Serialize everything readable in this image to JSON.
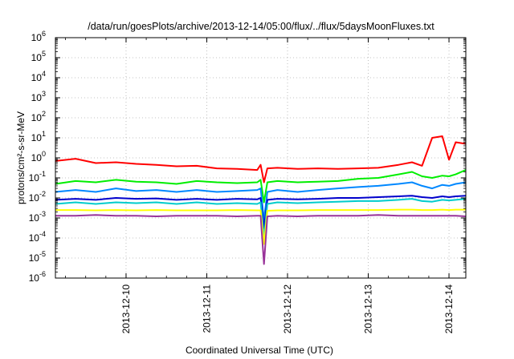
{
  "chart_data": {
    "type": "line",
    "title": "/data/run/goesPlots/archive/2013-12-14/05:00/flux/../flux/5daysMoonFluxes.txt",
    "xlabel": "Coordinated Universal Time (UTC)",
    "ylabel": "protons/cm²-s-sr-MeV",
    "yscale": "log",
    "ylim": [
      1e-06,
      1000000.0
    ],
    "xlim": [
      "2013-12-09T03:00",
      "2013-12-14T05:00"
    ],
    "grid": true,
    "legend": "none",
    "x_ticks": [
      "2013-12-10",
      "2013-12-11",
      "2013-12-12",
      "2013-12-13",
      "2013-12-14"
    ],
    "y_ticks": [
      {
        "base": "10",
        "exp": "-6"
      },
      {
        "base": "10",
        "exp": "-5"
      },
      {
        "base": "10",
        "exp": "-4"
      },
      {
        "base": "10",
        "exp": "-3"
      },
      {
        "base": "10",
        "exp": "-2"
      },
      {
        "base": "10",
        "exp": "-1"
      },
      {
        "base": "10",
        "exp": "0"
      },
      {
        "base": "10",
        "exp": "1"
      },
      {
        "base": "10",
        "exp": "2"
      },
      {
        "base": "10",
        "exp": "3"
      },
      {
        "base": "10",
        "exp": "4"
      },
      {
        "base": "10",
        "exp": "5"
      },
      {
        "base": "10",
        "exp": "6"
      }
    ],
    "x": [
      "2013-12-09T03:00",
      "2013-12-09T09:00",
      "2013-12-09T15:00",
      "2013-12-09T21:00",
      "2013-12-10T03:00",
      "2013-12-10T09:00",
      "2013-12-10T15:00",
      "2013-12-10T21:00",
      "2013-12-11T03:00",
      "2013-12-11T09:00",
      "2013-12-11T15:00",
      "2013-12-11T16:00",
      "2013-12-11T17:00",
      "2013-12-11T18:00",
      "2013-12-11T21:00",
      "2013-12-12T03:00",
      "2013-12-12T09:00",
      "2013-12-12T15:00",
      "2013-12-12T21:00",
      "2013-12-13T03:00",
      "2013-12-13T09:00",
      "2013-12-13T13:00",
      "2013-12-13T16:00",
      "2013-12-13T19:00",
      "2013-12-13T22:00",
      "2013-12-14T00:00",
      "2013-12-14T02:00",
      "2013-12-14T05:00"
    ],
    "series": [
      {
        "color": "#ff0000",
        "values": [
          0.7,
          0.9,
          0.55,
          0.6,
          0.5,
          0.45,
          0.38,
          0.4,
          0.3,
          0.28,
          0.25,
          0.45,
          0.06,
          0.3,
          0.32,
          0.28,
          0.3,
          0.28,
          0.3,
          0.32,
          0.45,
          0.6,
          0.4,
          10,
          12,
          0.8,
          6,
          5
        ]
      },
      {
        "color": "#00ee00",
        "values": [
          0.05,
          0.07,
          0.06,
          0.08,
          0.065,
          0.06,
          0.05,
          0.07,
          0.06,
          0.055,
          0.06,
          0.08,
          0.006,
          0.06,
          0.07,
          0.06,
          0.065,
          0.07,
          0.09,
          0.1,
          0.15,
          0.2,
          0.12,
          0.1,
          0.13,
          0.12,
          0.15,
          0.25
        ]
      },
      {
        "color": "#0088ff",
        "values": [
          0.02,
          0.025,
          0.02,
          0.03,
          0.022,
          0.025,
          0.02,
          0.025,
          0.02,
          0.022,
          0.025,
          0.03,
          0.0008,
          0.02,
          0.025,
          0.02,
          0.025,
          0.03,
          0.035,
          0.04,
          0.05,
          0.06,
          0.04,
          0.03,
          0.045,
          0.04,
          0.05,
          0.06
        ]
      },
      {
        "color": "#0000cc",
        "values": [
          0.008,
          0.009,
          0.008,
          0.01,
          0.009,
          0.0095,
          0.008,
          0.009,
          0.008,
          0.009,
          0.0085,
          0.01,
          0.0003,
          0.008,
          0.009,
          0.0085,
          0.009,
          0.01,
          0.01,
          0.011,
          0.012,
          0.013,
          0.011,
          0.01,
          0.012,
          0.011,
          0.012,
          0.013
        ]
      },
      {
        "color": "#00cccc",
        "values": [
          0.005,
          0.006,
          0.005,
          0.006,
          0.0055,
          0.006,
          0.005,
          0.006,
          0.005,
          0.0055,
          0.005,
          0.006,
          0.0001,
          0.005,
          0.006,
          0.0055,
          0.006,
          0.0065,
          0.007,
          0.007,
          0.008,
          0.009,
          0.007,
          0.0065,
          0.008,
          0.0075,
          0.008,
          0.009
        ]
      },
      {
        "color": "#ffff00",
        "values": [
          0.0025,
          0.0025,
          0.0024,
          0.0025,
          0.0024,
          0.0025,
          0.0024,
          0.0024,
          0.0024,
          0.0025,
          0.0024,
          0.0024,
          5e-05,
          0.0023,
          0.0024,
          0.0024,
          0.0025,
          0.0025,
          0.0025,
          0.0025,
          0.0026,
          0.0026,
          0.0025,
          0.0025,
          0.0026,
          0.0025,
          0.0026,
          0.0026
        ]
      },
      {
        "color": "#993399",
        "values": [
          0.0013,
          0.0013,
          0.0014,
          0.0013,
          0.0013,
          0.0012,
          0.0013,
          0.0013,
          0.0013,
          0.0012,
          0.0013,
          0.0013,
          5e-06,
          0.0012,
          0.0013,
          0.0012,
          0.0013,
          0.0013,
          0.0013,
          0.0014,
          0.0013,
          0.0013,
          0.0013,
          0.0013,
          0.0013,
          0.0013,
          0.0013,
          0.0012
        ]
      }
    ]
  }
}
